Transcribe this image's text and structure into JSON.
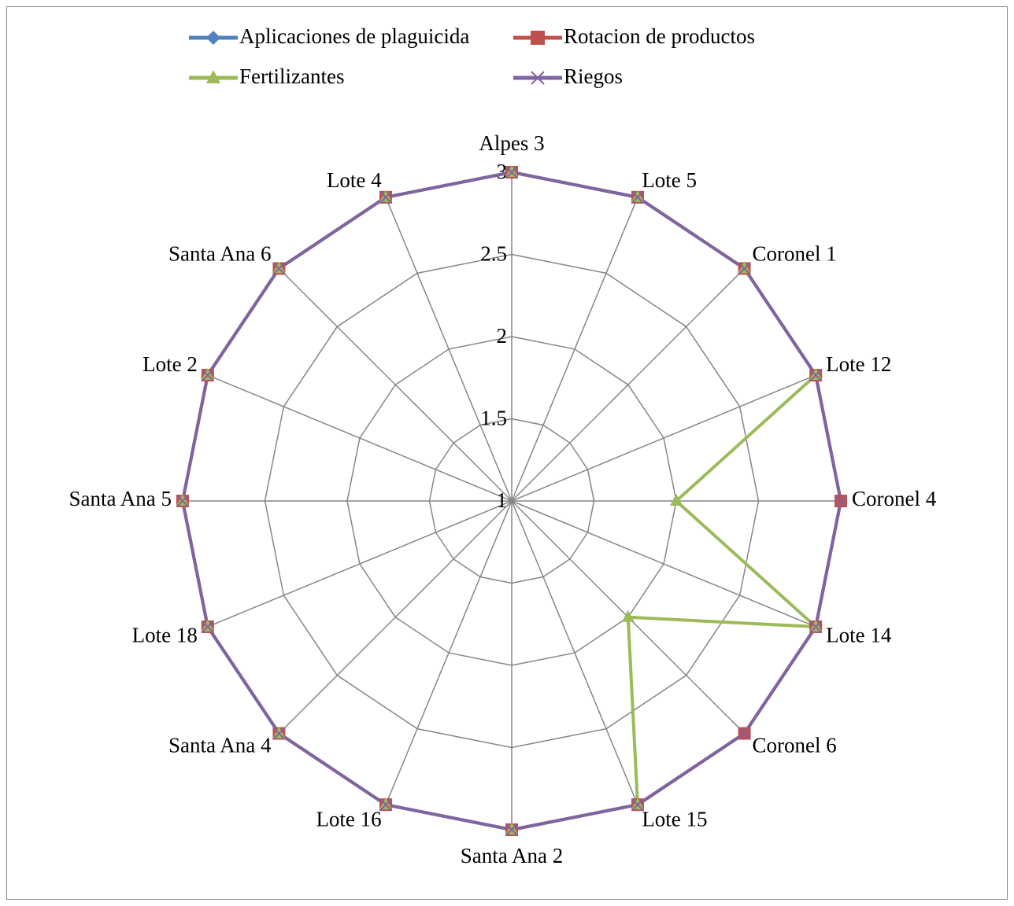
{
  "chart_data": {
    "type": "radar",
    "categories": [
      "Alpes 3",
      "Lote 5",
      "Coronel 1",
      "Lote 12",
      "Coronel 4",
      "Lote 14",
      "Coronel 6",
      "Lote 15",
      "Santa Ana 2",
      "Lote 16",
      "Santa Ana 4",
      "Lote 18",
      "Santa Ana 5",
      "Lote 2",
      "Santa Ana 6",
      "Lote 4"
    ],
    "series": [
      {
        "name": "Aplicaciones de plaguicida",
        "color": "#4f81bd",
        "marker": "diamond",
        "values": [
          3,
          3,
          3,
          3,
          3,
          3,
          3,
          3,
          3,
          3,
          3,
          3,
          3,
          3,
          3,
          3
        ]
      },
      {
        "name": "Rotacion de productos",
        "color": "#c0504d",
        "marker": "square",
        "values": [
          3,
          3,
          3,
          3,
          3,
          3,
          3,
          3,
          3,
          3,
          3,
          3,
          3,
          3,
          3,
          3
        ]
      },
      {
        "name": "Fertilizantes",
        "color": "#9bbb59",
        "marker": "triangle",
        "values": [
          3,
          3,
          3,
          3,
          2,
          3,
          2,
          3,
          3,
          3,
          3,
          3,
          3,
          3,
          3,
          3
        ]
      },
      {
        "name": "Riegos",
        "color": "#8064a2",
        "marker": "x",
        "values": [
          3,
          3,
          3,
          3,
          3,
          3,
          3,
          3,
          3,
          3,
          3,
          3,
          3,
          3,
          3,
          3
        ]
      }
    ],
    "ylim": [
      1,
      3
    ],
    "yticks": [
      1,
      1.5,
      2,
      2.5,
      3
    ],
    "grid": true,
    "legend": "top"
  }
}
